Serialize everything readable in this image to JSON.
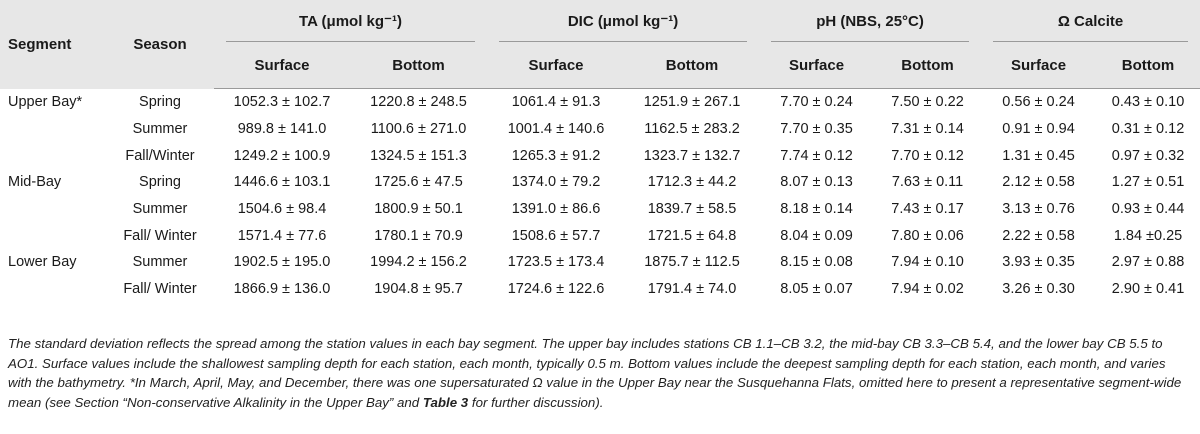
{
  "headers": {
    "segment": "Segment",
    "season": "Season",
    "ta": "TA (μmol kg⁻¹)",
    "dic": "DIC (μmol kg⁻¹)",
    "ph": "pH (NBS, 25°C)",
    "omega": "Ω Calcite",
    "surface": "Surface",
    "bottom": "Bottom"
  },
  "rows": [
    {
      "segment": "Upper Bay*",
      "season": "Spring",
      "ta_s": "1052.3 ± 102.7",
      "ta_b": "1220.8 ± 248.5",
      "dic_s": "1061.4 ± 91.3",
      "dic_b": "1251.9 ± 267.1",
      "ph_s": "7.70 ± 0.24",
      "ph_b": "7.50 ± 0.22",
      "om_s": "0.56 ± 0.24",
      "om_b": "0.43 ± 0.10"
    },
    {
      "segment": "",
      "season": "Summer",
      "ta_s": "989.8 ± 141.0",
      "ta_b": "1100.6 ± 271.0",
      "dic_s": "1001.4 ± 140.6",
      "dic_b": "1162.5 ± 283.2",
      "ph_s": "7.70 ± 0.35",
      "ph_b": "7.31 ± 0.14",
      "om_s": "0.91 ± 0.94",
      "om_b": "0.31 ± 0.12"
    },
    {
      "segment": "",
      "season": "Fall/Winter",
      "ta_s": "1249.2 ± 100.9",
      "ta_b": "1324.5 ± 151.3",
      "dic_s": "1265.3 ± 91.2",
      "dic_b": "1323.7 ± 132.7",
      "ph_s": "7.74 ± 0.12",
      "ph_b": "7.70 ± 0.12",
      "om_s": "1.31 ± 0.45",
      "om_b": "0.97 ± 0.32"
    },
    {
      "segment": "Mid-Bay",
      "season": "Spring",
      "ta_s": "1446.6 ± 103.1",
      "ta_b": "1725.6 ± 47.5",
      "dic_s": "1374.0 ± 79.2",
      "dic_b": "1712.3 ± 44.2",
      "ph_s": "8.07 ± 0.13",
      "ph_b": "7.63 ± 0.11",
      "om_s": "2.12 ± 0.58",
      "om_b": "1.27 ± 0.51"
    },
    {
      "segment": "",
      "season": "Summer",
      "ta_s": "1504.6 ± 98.4",
      "ta_b": "1800.9 ± 50.1",
      "dic_s": "1391.0 ± 86.6",
      "dic_b": "1839.7 ± 58.5",
      "ph_s": "8.18 ± 0.14",
      "ph_b": "7.43 ± 0.17",
      "om_s": "3.13 ± 0.76",
      "om_b": "0.93 ± 0.44"
    },
    {
      "segment": "",
      "season": "Fall/ Winter",
      "ta_s": "1571.4 ± 77.6",
      "ta_b": "1780.1 ± 70.9",
      "dic_s": "1508.6 ± 57.7",
      "dic_b": "1721.5 ± 64.8",
      "ph_s": "8.04 ± 0.09",
      "ph_b": "7.80 ± 0.06",
      "om_s": "2.22 ± 0.58",
      "om_b": "1.84 ±0.25"
    },
    {
      "segment": "Lower Bay",
      "season": "Summer",
      "ta_s": "1902.5 ± 195.0",
      "ta_b": "1994.2 ± 156.2",
      "dic_s": "1723.5 ± 173.4",
      "dic_b": "1875.7 ± 112.5",
      "ph_s": "8.15 ± 0.08",
      "ph_b": "7.94 ± 0.10",
      "om_s": "3.93 ± 0.35",
      "om_b": "2.97 ± 0.88"
    },
    {
      "segment": "",
      "season": "Fall/ Winter",
      "ta_s": "1866.9 ± 136.0",
      "ta_b": "1904.8 ± 95.7",
      "dic_s": "1724.6 ± 122.6",
      "dic_b": "1791.4 ± 74.0",
      "ph_s": "8.05 ± 0.07",
      "ph_b": "7.94 ± 0.02",
      "om_s": "3.26 ± 0.30",
      "om_b": "2.90 ± 0.41"
    }
  ],
  "footnote": {
    "text_before": "The standard deviation reflects the spread among the station values in each bay segment. The upper bay includes stations CB 1.1–CB 3.2, the mid-bay CB 3.3–CB 5.4, and the lower bay CB 5.5 to AO1. Surface values include the shallowest sampling depth for each station, each month, typically 0.5 m. Bottom values include the deepest sampling depth for each station, each month, and varies with the bathymetry. *In March, April, May, and December, there was one supersaturated Ω value in the Upper Bay near the Susquehanna Flats, omitted here to present a representative segment-wide mean (see Section “Non-conservative Alkalinity in the Upper Bay” and ",
    "table_ref": "Table 3",
    "text_after": " for further discussion)."
  }
}
